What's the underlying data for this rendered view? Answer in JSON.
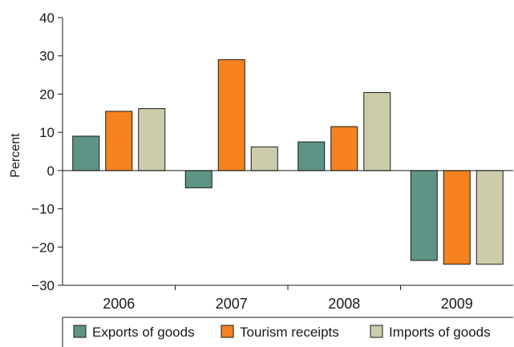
{
  "chart_data": {
    "type": "bar",
    "categories": [
      "2006",
      "2007",
      "2008",
      "2009"
    ],
    "series": [
      {
        "name": "Exports of goods",
        "values": [
          9,
          -4.5,
          7.5,
          -23.5
        ],
        "color": "#5e9485"
      },
      {
        "name": "Tourism receipts",
        "values": [
          15.5,
          29,
          11.5,
          -24.5
        ],
        "color": "#f5821f"
      },
      {
        "name": "Imports of goods",
        "values": [
          16.2,
          6.2,
          20.4,
          -24.5
        ],
        "color": "#cccbab"
      }
    ],
    "title": "",
    "xlabel": "",
    "ylabel": "Percent",
    "ylim": [
      -30,
      40
    ],
    "yticks": [
      40,
      30,
      20,
      10,
      0,
      -10,
      -20,
      -30
    ],
    "ytick_labels": [
      "40",
      "30",
      "20",
      "10",
      "0",
      "−10",
      "−20",
      "−30"
    ],
    "grid": false,
    "legend_position": "bottom"
  }
}
